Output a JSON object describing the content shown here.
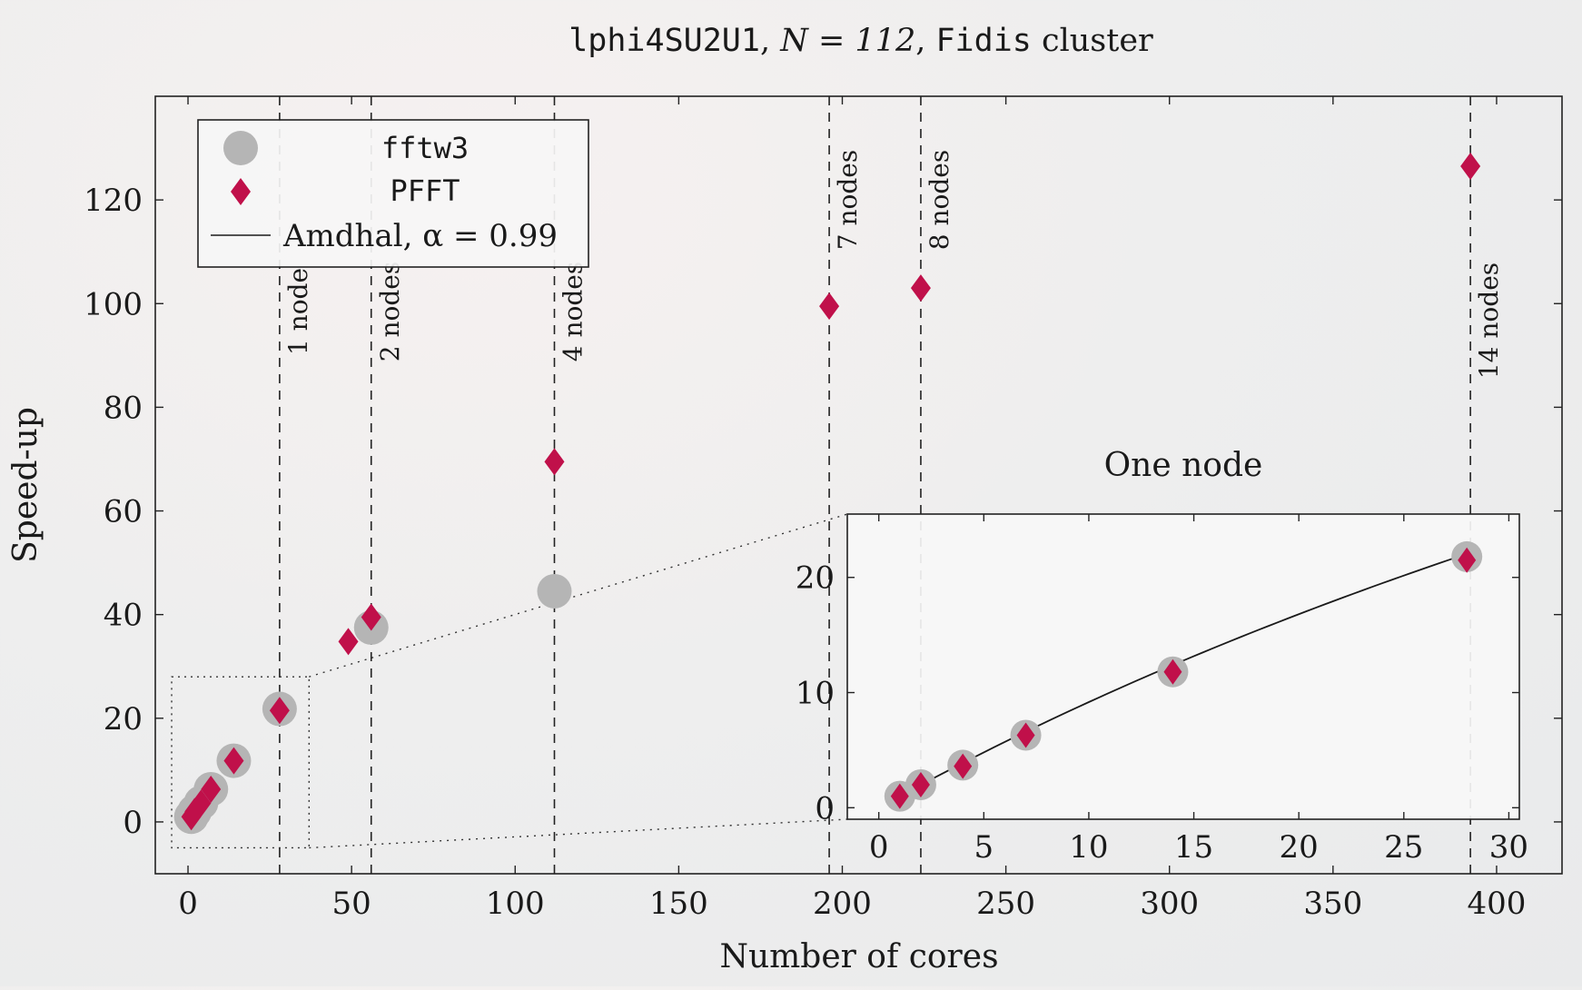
{
  "chart_data": [
    {
      "type": "scatter",
      "title_parts": {
        "code": "lphi4SU2U1",
        "sep1": ", ",
        "n_label": "N = 112",
        "sep2": ", ",
        "cluster": "Fidis",
        "cluster_suffix": " cluster"
      },
      "xlabel": "Number of cores",
      "ylabel": "Speed-up",
      "xlim": [
        -10,
        420
      ],
      "ylim": [
        -10,
        140
      ],
      "xticks": [
        0,
        50,
        100,
        150,
        200,
        250,
        300,
        350,
        400
      ],
      "yticks": [
        0,
        20,
        40,
        60,
        80,
        100,
        120
      ],
      "grid": false,
      "legend_position": "top-left",
      "legend": [
        {
          "name": "fftw3",
          "marker": "circle",
          "font": "mono"
        },
        {
          "name": "PFFT",
          "marker": "diamond",
          "font": "mono"
        },
        {
          "name": "Amdhal, α = 0.99",
          "marker": "line",
          "font": "serif"
        }
      ],
      "series": [
        {
          "name": "fftw3",
          "color": "#b5b5b5",
          "x": [
            1,
            2,
            4,
            7,
            14,
            28,
            56,
            112
          ],
          "y": [
            1,
            2,
            3.7,
            6.3,
            11.8,
            21.8,
            37.5,
            44.5
          ]
        },
        {
          "name": "PFFT",
          "color": "#c0104a",
          "x": [
            1,
            2,
            4,
            7,
            14,
            28,
            49,
            56,
            112,
            196,
            224,
            392
          ],
          "y": [
            1,
            2,
            3.6,
            6.3,
            11.8,
            21.5,
            34.8,
            39.5,
            69.5,
            99.5,
            103,
            126.5
          ]
        }
      ],
      "node_lines": [
        {
          "x": 28,
          "label": "1 node"
        },
        {
          "x": 56,
          "label": "2 nodes"
        },
        {
          "x": 112,
          "label": "4 nodes"
        },
        {
          "x": 196,
          "label": "7 nodes"
        },
        {
          "x": 224,
          "label": "8 nodes"
        },
        {
          "x": 392,
          "label": "14 nodes"
        }
      ],
      "zoom_region": {
        "x": [
          -5,
          37
        ],
        "y": [
          -5,
          28
        ]
      }
    },
    {
      "type": "scatter",
      "title": "One node",
      "xlim": [
        -1.5,
        30.5
      ],
      "ylim": [
        -1,
        25.5
      ],
      "xticks": [
        0,
        5,
        10,
        15,
        20,
        25,
        30
      ],
      "yticks": [
        0,
        10,
        20
      ],
      "grid": false,
      "series": [
        {
          "name": "fftw3",
          "color": "#b5b5b5",
          "x": [
            1,
            2,
            4,
            7,
            14,
            28
          ],
          "y": [
            1,
            2,
            3.7,
            6.3,
            11.8,
            21.8
          ]
        },
        {
          "name": "PFFT",
          "color": "#c0104a",
          "x": [
            1,
            2,
            4,
            7,
            14,
            28
          ],
          "y": [
            1,
            2,
            3.6,
            6.3,
            11.8,
            21.5
          ]
        },
        {
          "name": "Amdhal, α = 0.99",
          "type": "line",
          "color": "#1a1a1a",
          "alpha": 0.99,
          "x_range": [
            1,
            28
          ]
        }
      ]
    }
  ]
}
